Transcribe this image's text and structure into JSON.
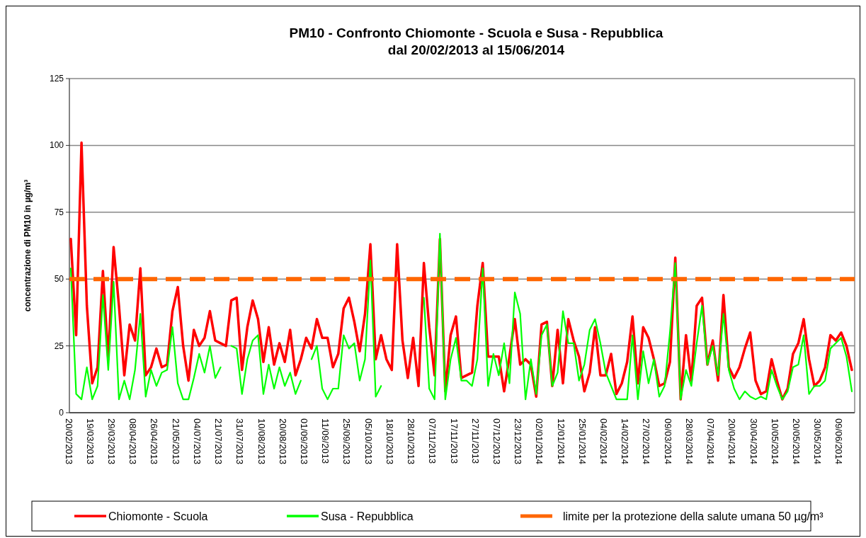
{
  "chart_data": {
    "type": "line",
    "title": "PM10 - Confronto Chiomonte - Scuola e Susa - Repubblica",
    "subtitle": "dal 20/02/2013 al 15/06/2014",
    "ylabel": "concentrazione di PM10 in µg/m³",
    "categories": [
      "20/02/2013",
      null,
      null,
      null,
      "19/03/2013",
      null,
      null,
      null,
      "29/03/2013",
      null,
      null,
      null,
      "08/04/2013",
      null,
      null,
      null,
      "26/04/2013",
      null,
      null,
      null,
      "21/05/2013",
      null,
      null,
      null,
      "04/07/2013",
      null,
      null,
      null,
      "21/07/2013",
      null,
      null,
      null,
      "31/07/2013",
      null,
      null,
      null,
      "10/08/2013",
      null,
      null,
      null,
      "20/08/2013",
      null,
      null,
      null,
      "01/09/2013",
      null,
      null,
      null,
      "11/09/2013",
      null,
      null,
      null,
      "25/09/2013",
      null,
      null,
      null,
      "05/10/2013",
      null,
      null,
      null,
      "18/10/2013",
      null,
      null,
      null,
      "28/10/2013",
      null,
      null,
      null,
      "07/11/2013",
      null,
      null,
      null,
      "17/11/2013",
      null,
      null,
      null,
      "27/11/2013",
      null,
      null,
      null,
      "07/12/2013",
      null,
      null,
      null,
      "23/12/2013",
      null,
      null,
      null,
      "02/01/2014",
      null,
      null,
      null,
      "12/01/2014",
      null,
      null,
      null,
      "25/01/2014",
      null,
      null,
      null,
      "04/02/2014",
      null,
      null,
      null,
      "14/02/2014",
      null,
      null,
      null,
      "27/02/2014",
      null,
      null,
      null,
      "09/03/2014",
      null,
      null,
      null,
      "28/03/2014",
      null,
      null,
      null,
      "07/04/2014",
      null,
      null,
      null,
      "20/04/2014",
      null,
      null,
      null,
      "30/04/2014",
      null,
      null,
      null,
      "10/05/2014",
      null,
      null,
      null,
      "20/05/2014",
      null,
      null,
      null,
      "30/05/2014",
      null,
      null,
      null,
      "09/06/2014",
      null,
      null
    ],
    "series": [
      {
        "name": "Chiomonte - Scuola",
        "color": "#ff0000",
        "values": [
          65,
          29,
          101,
          40,
          11,
          17,
          53,
          20,
          62,
          40,
          14,
          33,
          27,
          54,
          14,
          17,
          24,
          17,
          18,
          38,
          47,
          25,
          12,
          31,
          25,
          28,
          38,
          27,
          26,
          25,
          42,
          43,
          16,
          32,
          42,
          35,
          19,
          32,
          18,
          26,
          19,
          31,
          14,
          20,
          28,
          24,
          35,
          28,
          28,
          17,
          22,
          39,
          43,
          34,
          23,
          37,
          63,
          20,
          29,
          20,
          16,
          63,
          27,
          13,
          28,
          10,
          56,
          32,
          14,
          65,
          8,
          29,
          36,
          13,
          14,
          15,
          40,
          56,
          21,
          21,
          21,
          8,
          21,
          35,
          18,
          20,
          18,
          6,
          33,
          34,
          10,
          31,
          11,
          35,
          27,
          21,
          8,
          15,
          32,
          14,
          14,
          22,
          7,
          11,
          19,
          36,
          11,
          32,
          28,
          20,
          10,
          11,
          19,
          58,
          5,
          29,
          12,
          40,
          43,
          18,
          27,
          12,
          44,
          17,
          13,
          17,
          24,
          30,
          12,
          7,
          8,
          20,
          12,
          5,
          9,
          22,
          26,
          35,
          20,
          10,
          12,
          17,
          29,
          27,
          30,
          25,
          16
        ]
      },
      {
        "name": "Susa - Repubblica",
        "color": "#00ff00",
        "values": [
          54,
          7,
          5,
          17,
          5,
          10,
          44,
          16,
          49,
          5,
          12,
          5,
          16,
          37,
          6,
          16,
          10,
          15,
          16,
          32,
          11,
          5,
          5,
          13,
          22,
          15,
          25,
          13,
          17,
          null,
          25,
          24,
          7,
          20,
          27,
          29,
          7,
          18,
          9,
          17,
          10,
          15,
          7,
          12,
          null,
          20,
          25,
          9,
          5,
          9,
          9,
          29,
          24,
          26,
          12,
          20,
          57,
          6,
          10,
          null,
          null,
          null,
          null,
          null,
          null,
          null,
          43,
          9,
          5,
          67,
          5,
          20,
          28,
          12,
          12,
          10,
          20,
          54,
          10,
          22,
          14,
          26,
          11,
          45,
          37,
          5,
          20,
          7,
          29,
          33,
          10,
          15,
          38,
          26,
          26,
          12,
          18,
          31,
          35,
          26,
          15,
          10,
          5,
          5,
          5,
          29,
          5,
          23,
          11,
          20,
          6,
          10,
          30,
          56,
          5,
          16,
          10,
          26,
          40,
          18,
          25,
          14,
          37,
          16,
          9,
          5,
          8,
          6,
          5,
          6,
          5,
          16,
          10,
          5,
          8,
          17,
          18,
          29,
          7,
          10,
          10,
          12,
          24,
          26,
          28,
          21,
          8
        ]
      }
    ],
    "ref_lines": [
      {
        "axis": "y",
        "value": 50,
        "label": "limite per la protezione della salute umana 50 µg/m³",
        "color": "#ff6600",
        "line_style": "dashed"
      }
    ],
    "ylim": [
      0,
      125
    ],
    "yticks": [
      0,
      25,
      50,
      75,
      100,
      125
    ],
    "grid": "y",
    "legend": "bottom"
  }
}
